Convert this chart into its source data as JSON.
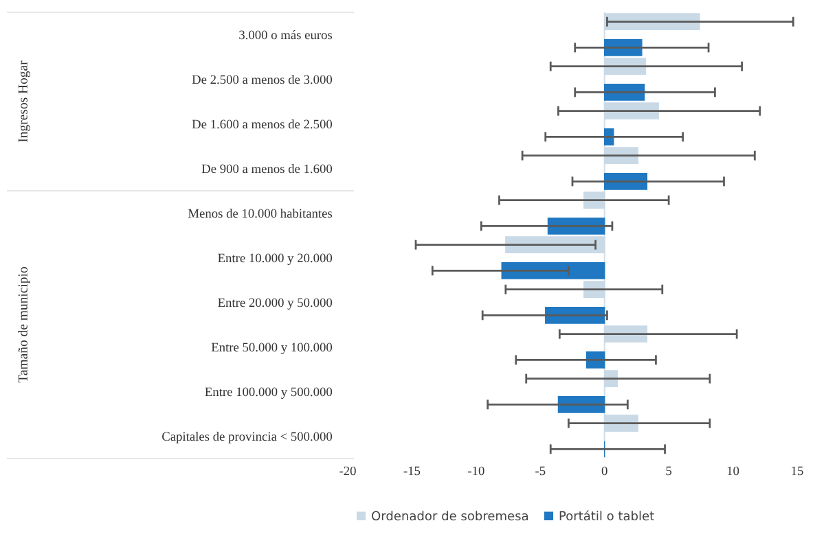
{
  "chart_data": {
    "type": "bar",
    "orientation": "horizontal",
    "categories": [
      "3.000 o más euros",
      "De 2.500 a menos de 3.000",
      "De 1.600 a menos de 2.500",
      "De 900 a menos de 1.600",
      "Menos de 10.000 habitantes",
      "Entre 10.000 y 20.000",
      "Entre 20.000 y 50.000",
      "Entre 50.000 y 100.000",
      "Entre 100.000 y 500.000",
      "Capitales de provincia < 500.000"
    ],
    "series": [
      {
        "name": "Ordenador de sobremesa",
        "color": "#c9d9e6",
        "values": [
          7.4,
          3.2,
          4.2,
          2.6,
          -1.6,
          -7.7,
          -1.6,
          3.3,
          1.0,
          2.6
        ],
        "errors": [
          [
            0.2,
            14.7
          ],
          [
            -4.2,
            10.7
          ],
          [
            -3.6,
            12.1
          ],
          [
            -6.4,
            11.7
          ],
          [
            -8.2,
            5.0
          ],
          [
            -14.7,
            -0.7
          ],
          [
            -7.7,
            4.5
          ],
          [
            -3.5,
            10.3
          ],
          [
            -6.1,
            8.2
          ],
          [
            -2.8,
            8.2
          ]
        ]
      },
      {
        "name": "Portátil o tablet",
        "color": "#1f78c1",
        "values": [
          2.9,
          3.1,
          0.7,
          3.3,
          -4.4,
          -8.0,
          -4.6,
          -1.4,
          -3.6,
          0
        ],
        "errors": [
          [
            -2.3,
            8.1
          ],
          [
            -2.3,
            8.6
          ],
          [
            -4.6,
            6.1
          ],
          [
            -2.5,
            9.3
          ],
          [
            -9.6,
            0.6
          ],
          [
            -13.4,
            -2.8
          ],
          [
            -9.5,
            0.2
          ],
          [
            -6.9,
            4.0
          ],
          [
            -9.1,
            1.8
          ],
          [
            -4.2,
            4.7
          ]
        ]
      }
    ],
    "xlim": [
      -20,
      15
    ],
    "xticks": [
      -20,
      -15,
      -10,
      -5,
      0,
      5,
      10,
      15
    ],
    "ref_lines": [
      {
        "axis": "x",
        "value": 0,
        "color": "#d3dde6"
      }
    ],
    "annotations": [
      "Ingresos Hogar",
      "Tamaño de municipio"
    ],
    "legend": "bottom",
    "grid": false
  }
}
